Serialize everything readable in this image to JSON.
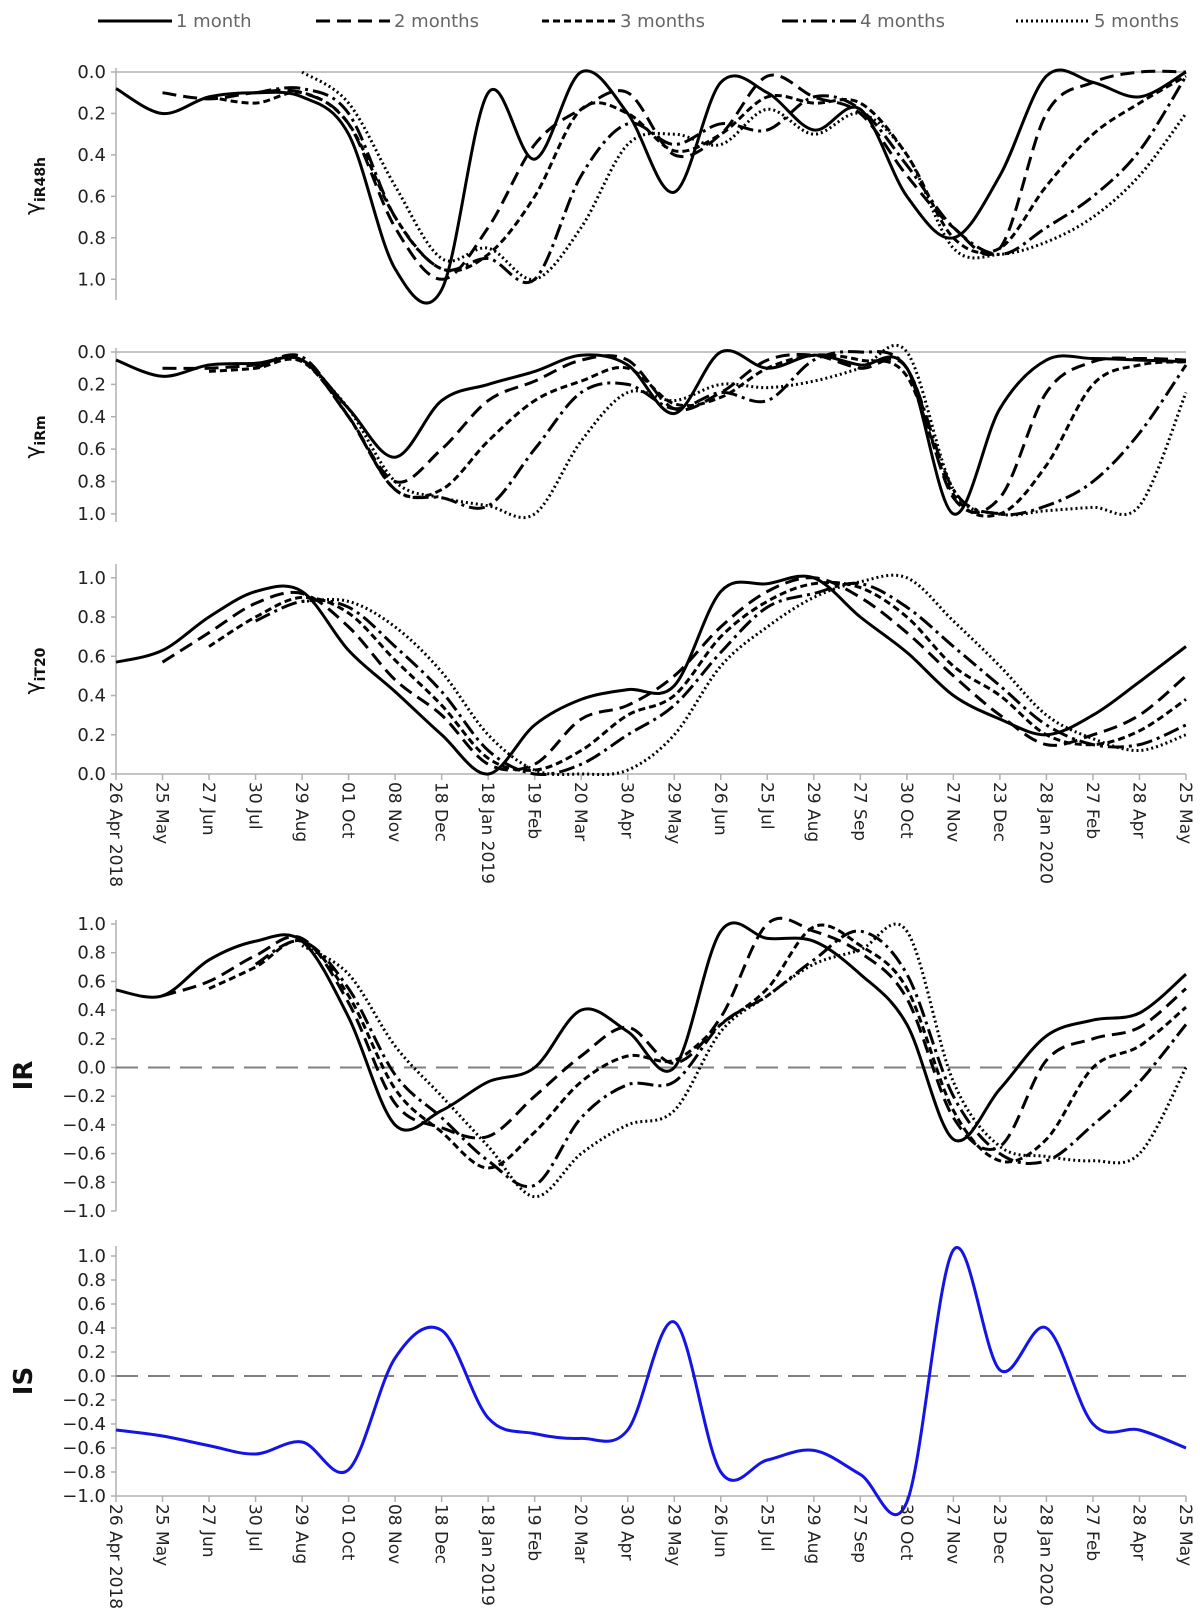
{
  "legend": [
    {
      "name": "1 month",
      "dash": "solid"
    },
    {
      "name": "2 months",
      "dash": "longdash"
    },
    {
      "name": "3 months",
      "dash": "dash"
    },
    {
      "name": "4 months",
      "dash": "dashdot"
    },
    {
      "name": "5 months",
      "dash": "dot"
    }
  ],
  "colors": {
    "lines": "#000000",
    "is_line": "#1414e6",
    "zero_line": "#808080",
    "axis": "#b0b0b0"
  },
  "x_ticks": [
    "26 Apr 2018",
    "25 May",
    "27 Jun",
    "30 Jul",
    "29 Aug",
    "01 Oct",
    "08 Nov",
    "18 Dec",
    "18 Jan 2019",
    "19 Feb",
    "20 Mar",
    "30 Apr",
    "29 May",
    "26 Jun",
    "25 Jul",
    "29 Aug",
    "27 Sep",
    "30 Oct",
    "27 Nov",
    "23 Dec",
    "28 Jan 2020",
    "27 Feb",
    "28 Apr",
    "25 May"
  ],
  "chart_data": [
    {
      "type": "line",
      "ylabel_base": "γ",
      "ylabel_sub": "iR48h",
      "ylim": [
        0,
        1.1
      ],
      "y_inverted": true,
      "yticks": [
        "0.0",
        "0.2",
        "0.4",
        "0.6",
        "0.8",
        "1.0"
      ],
      "x": [
        0,
        1,
        2,
        3,
        4,
        5,
        6,
        7,
        8,
        9,
        10,
        11,
        12,
        13,
        14,
        15,
        16,
        17,
        18,
        19,
        20,
        21,
        22,
        23
      ],
      "series": [
        {
          "name": "1 month",
          "values": [
            0.08,
            0.2,
            0.12,
            0.1,
            0.12,
            0.3,
            0.95,
            1.05,
            0.1,
            0.42,
            0.0,
            0.2,
            0.58,
            0.05,
            0.1,
            0.28,
            0.18,
            0.6,
            0.8,
            0.5,
            0.02,
            0.05,
            0.12,
            0.0
          ]
        },
        {
          "name": "2 months",
          "values": [
            null,
            0.1,
            0.13,
            0.1,
            0.1,
            0.25,
            0.75,
            1.0,
            0.75,
            0.35,
            0.18,
            0.1,
            0.4,
            0.3,
            0.02,
            0.12,
            0.2,
            0.5,
            0.75,
            0.85,
            0.2,
            0.05,
            0.0,
            0.0
          ]
        },
        {
          "name": "3 months",
          "values": [
            null,
            null,
            0.12,
            0.15,
            0.1,
            0.25,
            0.7,
            0.95,
            0.88,
            0.6,
            0.18,
            0.2,
            0.38,
            0.3,
            0.12,
            0.15,
            0.15,
            0.4,
            0.8,
            0.85,
            0.55,
            0.3,
            0.15,
            0.02
          ]
        },
        {
          "name": "4 months",
          "values": [
            null,
            null,
            null,
            0.1,
            0.08,
            0.2,
            0.7,
            0.95,
            0.9,
            1.0,
            0.5,
            0.25,
            0.35,
            0.25,
            0.28,
            0.12,
            0.18,
            0.45,
            0.75,
            0.88,
            0.75,
            0.6,
            0.38,
            0.02
          ]
        },
        {
          "name": "5 months",
          "values": [
            null,
            null,
            null,
            null,
            0.0,
            0.15,
            0.55,
            0.9,
            0.85,
            1.0,
            0.75,
            0.35,
            0.3,
            0.35,
            0.18,
            0.3,
            0.2,
            0.4,
            0.85,
            0.88,
            0.82,
            0.7,
            0.5,
            0.2
          ]
        }
      ]
    },
    {
      "type": "line",
      "ylabel_base": "γ",
      "ylabel_sub": "iRm",
      "ylim": [
        0,
        1.05
      ],
      "y_inverted": true,
      "yticks": [
        "0.0",
        "0.2",
        "0.4",
        "0.6",
        "0.8",
        "1.0"
      ],
      "x": [
        0,
        1,
        2,
        3,
        4,
        5,
        6,
        7,
        8,
        9,
        10,
        11,
        12,
        13,
        14,
        15,
        16,
        17,
        18,
        19,
        20,
        21,
        22,
        23
      ],
      "series": [
        {
          "name": "1 month",
          "values": [
            0.05,
            0.15,
            0.08,
            0.07,
            0.05,
            0.35,
            0.65,
            0.3,
            0.2,
            0.12,
            0.02,
            0.08,
            0.38,
            0.0,
            0.1,
            0.02,
            0.08,
            0.1,
            1.0,
            0.35,
            0.05,
            0.04,
            0.05,
            0.06
          ]
        },
        {
          "name": "2 months",
          "values": [
            null,
            0.1,
            0.1,
            0.08,
            0.05,
            0.4,
            0.8,
            0.6,
            0.3,
            0.18,
            0.05,
            0.05,
            0.35,
            0.25,
            0.05,
            0.02,
            0.1,
            0.1,
            0.9,
            0.9,
            0.25,
            0.06,
            0.04,
            0.05
          ]
        },
        {
          "name": "3 months",
          "values": [
            null,
            null,
            0.12,
            0.1,
            0.06,
            0.4,
            0.85,
            0.85,
            0.55,
            0.3,
            0.18,
            0.1,
            0.32,
            0.28,
            0.1,
            0.02,
            0.05,
            0.15,
            0.88,
            1.0,
            0.7,
            0.2,
            0.08,
            0.06
          ]
        },
        {
          "name": "4 months",
          "values": [
            null,
            null,
            null,
            0.1,
            0.03,
            0.4,
            0.85,
            0.9,
            0.95,
            0.6,
            0.25,
            0.2,
            0.35,
            0.25,
            0.3,
            0.05,
            0.0,
            0.1,
            0.85,
            1.0,
            0.95,
            0.8,
            0.5,
            0.08
          ]
        },
        {
          "name": "5 months",
          "values": [
            null,
            null,
            null,
            null,
            0.04,
            0.35,
            0.8,
            0.9,
            0.95,
            1.0,
            0.55,
            0.25,
            0.3,
            0.2,
            0.22,
            0.18,
            0.1,
            0.0,
            0.85,
            1.0,
            0.98,
            0.96,
            0.95,
            0.25
          ]
        }
      ]
    },
    {
      "type": "line",
      "ylabel_base": "γ",
      "ylabel_sub": "iT20",
      "ylim": [
        0,
        1.05
      ],
      "y_inverted": false,
      "yticks": [
        "0.0",
        "0.2",
        "0.4",
        "0.6",
        "0.8",
        "1.0"
      ],
      "x": [
        0,
        1,
        2,
        3,
        4,
        5,
        6,
        7,
        8,
        9,
        10,
        11,
        12,
        13,
        14,
        15,
        16,
        17,
        18,
        19,
        20,
        21,
        22,
        23
      ],
      "series": [
        {
          "name": "1 month",
          "values": [
            0.57,
            0.63,
            0.8,
            0.93,
            0.93,
            0.63,
            0.42,
            0.2,
            0.0,
            0.25,
            0.38,
            0.43,
            0.45,
            0.93,
            0.97,
            1.0,
            0.8,
            0.62,
            0.4,
            0.28,
            0.2,
            0.3,
            0.47,
            0.65
          ]
        },
        {
          "name": "2 months",
          "values": [
            null,
            0.57,
            0.72,
            0.87,
            0.92,
            0.75,
            0.48,
            0.3,
            0.05,
            0.05,
            0.28,
            0.35,
            0.5,
            0.75,
            0.93,
            1.0,
            0.9,
            0.72,
            0.5,
            0.3,
            0.15,
            0.2,
            0.3,
            0.5
          ]
        },
        {
          "name": "3 months",
          "values": [
            null,
            null,
            0.65,
            0.8,
            0.9,
            0.82,
            0.58,
            0.35,
            0.08,
            0.02,
            0.12,
            0.3,
            0.4,
            0.7,
            0.88,
            0.97,
            0.95,
            0.8,
            0.55,
            0.4,
            0.2,
            0.15,
            0.22,
            0.38
          ]
        },
        {
          "name": "4 months",
          "values": [
            null,
            null,
            null,
            0.78,
            0.88,
            0.85,
            0.65,
            0.42,
            0.12,
            0.0,
            0.05,
            0.2,
            0.35,
            0.62,
            0.85,
            0.92,
            0.97,
            0.85,
            0.65,
            0.45,
            0.25,
            0.15,
            0.15,
            0.25
          ]
        },
        {
          "name": "5 months",
          "values": [
            null,
            null,
            null,
            null,
            0.88,
            0.88,
            0.75,
            0.52,
            0.2,
            0.02,
            0.0,
            0.02,
            0.2,
            0.55,
            0.75,
            0.9,
            0.98,
            1.0,
            0.78,
            0.55,
            0.3,
            0.18,
            0.12,
            0.2
          ]
        }
      ]
    },
    {
      "type": "line",
      "ylabel": "IR",
      "ylim": [
        -1.0,
        1.0
      ],
      "y_inverted": false,
      "yticks": [
        "1.0",
        "0.8",
        "0.6",
        "0.4",
        "0.2",
        "0.0",
        "−0.2",
        "−0.4",
        "−0.6",
        "−0.8",
        "−1.0"
      ],
      "zero_line": true,
      "x": [
        0,
        1,
        2,
        3,
        4,
        5,
        6,
        7,
        8,
        9,
        10,
        11,
        12,
        13,
        14,
        15,
        16,
        17,
        18,
        19,
        20,
        21,
        22,
        23
      ],
      "series": [
        {
          "name": "1 month",
          "values": [
            0.54,
            0.5,
            0.75,
            0.88,
            0.88,
            0.35,
            -0.4,
            -0.3,
            -0.1,
            0.0,
            0.4,
            0.25,
            0.0,
            0.95,
            0.9,
            0.88,
            0.65,
            0.3,
            -0.5,
            -0.15,
            0.22,
            0.33,
            0.38,
            0.65
          ]
        },
        {
          "name": "2 months",
          "values": [
            null,
            0.5,
            0.6,
            0.78,
            0.9,
            0.45,
            -0.25,
            -0.42,
            -0.48,
            -0.2,
            0.08,
            0.28,
            0.03,
            0.35,
            1.0,
            0.95,
            0.8,
            0.48,
            -0.35,
            -0.55,
            0.05,
            0.2,
            0.28,
            0.55
          ]
        },
        {
          "name": "3 months",
          "values": [
            null,
            null,
            0.55,
            0.7,
            0.88,
            0.5,
            -0.15,
            -0.45,
            -0.7,
            -0.45,
            -0.1,
            0.08,
            0.05,
            0.3,
            0.55,
            0.98,
            0.85,
            0.55,
            -0.3,
            -0.65,
            -0.5,
            0.0,
            0.15,
            0.42
          ]
        },
        {
          "name": "4 months",
          "values": [
            null,
            null,
            null,
            0.72,
            0.88,
            0.55,
            -0.05,
            -0.35,
            -0.65,
            -0.82,
            -0.35,
            -0.12,
            -0.1,
            0.3,
            0.5,
            0.75,
            0.95,
            0.65,
            -0.2,
            -0.6,
            -0.65,
            -0.4,
            -0.1,
            0.3
          ]
        },
        {
          "name": "5 months",
          "values": [
            null,
            null,
            null,
            null,
            0.85,
            0.65,
            0.15,
            -0.2,
            -0.55,
            -0.9,
            -0.6,
            -0.4,
            -0.3,
            0.25,
            0.5,
            0.72,
            0.82,
            0.95,
            -0.1,
            -0.55,
            -0.62,
            -0.65,
            -0.6,
            0.0
          ]
        }
      ]
    },
    {
      "type": "line",
      "ylabel": "IS",
      "ylim": [
        -1.0,
        1.05
      ],
      "y_inverted": false,
      "yticks": [
        "1.0",
        "0.8",
        "0.6",
        "0.4",
        "0.2",
        "0.0",
        "−0.2",
        "−0.4",
        "−0.6",
        "−0.8",
        "−1.0"
      ],
      "zero_line": true,
      "x": [
        0,
        1,
        2,
        3,
        4,
        5,
        6,
        7,
        8,
        9,
        10,
        11,
        12,
        13,
        14,
        15,
        16,
        17,
        18,
        19,
        20,
        21,
        22,
        23
      ],
      "series": [
        {
          "name": "",
          "values": [
            -0.45,
            -0.5,
            -0.58,
            -0.65,
            -0.55,
            -0.78,
            0.15,
            0.38,
            -0.35,
            -0.48,
            -0.52,
            -0.45,
            0.45,
            -0.8,
            -0.7,
            -0.62,
            -0.82,
            -1.05,
            1.05,
            0.05,
            0.4,
            -0.4,
            -0.45,
            -0.6
          ]
        }
      ]
    }
  ]
}
